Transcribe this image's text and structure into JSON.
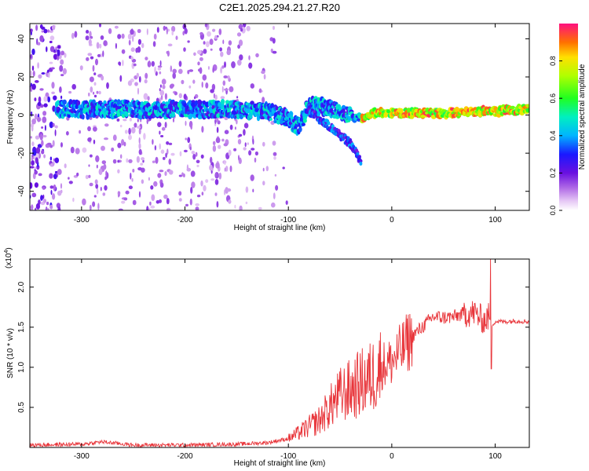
{
  "title": "C2E1.2025.294.21.27.R20",
  "colors": {
    "line": "#e8353a",
    "axis": "#000000",
    "background": "#ffffff"
  },
  "chart_data": [
    {
      "type": "heatmap",
      "title": "C2E1.2025.294.21.27.R20",
      "xlabel": "Height of straight line (km)",
      "ylabel": "Frequency (Hz)",
      "xlim": [
        -350,
        133
      ],
      "ylim": [
        -50,
        48
      ],
      "xticks": [
        -300,
        -200,
        -100,
        0,
        100
      ],
      "yticks": [
        -40,
        -20,
        0,
        20,
        40
      ],
      "colorbar": {
        "label": "Normalized spectral amplitude",
        "range": [
          0,
          1
        ],
        "ticks": [
          0.0,
          0.2,
          0.4,
          0.6,
          0.8
        ],
        "tick_labels": [
          "0.0",
          "0.2",
          "0.4",
          "0.6",
          "0.8"
        ]
      },
      "ridge": {
        "description": "main frequency ridge",
        "x": [
          -325,
          -300,
          -250,
          -200,
          -150,
          -120,
          -100,
          -90,
          -80,
          -60,
          -40,
          -30,
          -20,
          0,
          50,
          100,
          133
        ],
        "y": [
          3,
          3,
          3,
          3,
          3,
          2,
          -2,
          -6,
          5,
          4,
          0,
          -2,
          1,
          1,
          1,
          2,
          3
        ],
        "branch": {
          "x": [
            -80,
            -60,
            -40,
            -30
          ],
          "y": [
            2,
            -6,
            -15,
            -24
          ]
        }
      }
    },
    {
      "type": "line",
      "xlabel": "Height of straight line (km)",
      "ylabel": "SNR (10 * v/v)",
      "y_multiplier": "(x10",
      "y_multiplier_exp": "4",
      "y_multiplier_close": ")",
      "xlim": [
        -350,
        133
      ],
      "ylim": [
        0,
        23500
      ],
      "xticks": [
        -300,
        -200,
        -100,
        0,
        100
      ],
      "yticks": [
        5000,
        10000,
        15000,
        20000
      ],
      "ytick_labels": [
        "0.5",
        "1.0",
        "1.5",
        "2.0"
      ],
      "series": [
        {
          "name": "SNR",
          "x": [
            -350,
            -300,
            -280,
            -250,
            -200,
            -150,
            -120,
            -100,
            -90,
            -80,
            -70,
            -60,
            -50,
            -40,
            -30,
            -20,
            -10,
            0,
            10,
            20,
            30,
            40,
            50,
            60,
            70,
            80,
            85,
            90,
            94,
            96,
            100,
            110,
            120,
            133
          ],
          "y": [
            300,
            400,
            700,
            300,
            300,
            400,
            600,
            1100,
            1800,
            2600,
            3400,
            5000,
            6500,
            7200,
            8000,
            8700,
            10200,
            10700,
            12200,
            13900,
            15100,
            16300,
            16200,
            16300,
            16700,
            16800,
            16200,
            15800,
            16400,
            15200,
            15700,
            15700,
            15800,
            15700
          ]
        }
      ]
    }
  ]
}
